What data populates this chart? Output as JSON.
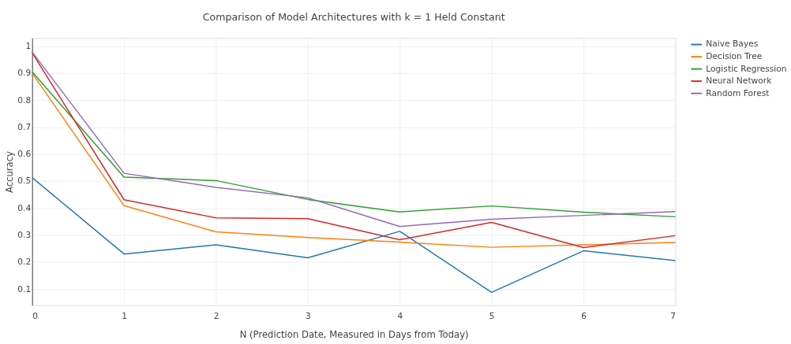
{
  "chart_data": {
    "type": "line",
    "title": "Comparison of Model Architectures with k = 1 Held Constant",
    "xlabel": "N (Prediction Date, Measured in Days from Today)",
    "ylabel": "Accuracy",
    "x": [
      0,
      1,
      2,
      3,
      4,
      5,
      6,
      7
    ],
    "series": [
      {
        "name": "Naive Bayes",
        "color": "#1f77b4",
        "values": [
          0.513,
          0.23,
          0.264,
          0.216,
          0.314,
          0.088,
          0.242,
          0.206
        ]
      },
      {
        "name": "Decision Tree",
        "color": "#ff7f0e",
        "values": [
          0.9,
          0.409,
          0.312,
          0.291,
          0.274,
          0.255,
          0.264,
          0.273
        ]
      },
      {
        "name": "Logistic Regression",
        "color": "#2ca02c",
        "values": [
          0.905,
          0.515,
          0.502,
          0.432,
          0.386,
          0.408,
          0.385,
          0.368
        ]
      },
      {
        "name": "Neural Network",
        "color": "#d62728",
        "values": [
          0.975,
          0.431,
          0.364,
          0.361,
          0.283,
          0.347,
          0.254,
          0.298
        ]
      },
      {
        "name": "Random Forest",
        "color": "#9467bd",
        "values": [
          0.978,
          0.529,
          0.477,
          0.438,
          0.332,
          0.359,
          0.373,
          0.387
        ]
      }
    ],
    "xlim": [
      0,
      7
    ],
    "xticks": [
      0,
      1,
      2,
      3,
      4,
      5,
      6,
      7
    ],
    "ylim": [
      0.04,
      1.03
    ],
    "yticks": [
      0.1,
      0.2,
      0.3,
      0.4,
      0.5,
      0.6,
      0.7,
      0.8,
      0.9,
      1
    ],
    "grid": true,
    "legend": "top right",
    "marker": "none",
    "line_style": "solid"
  }
}
